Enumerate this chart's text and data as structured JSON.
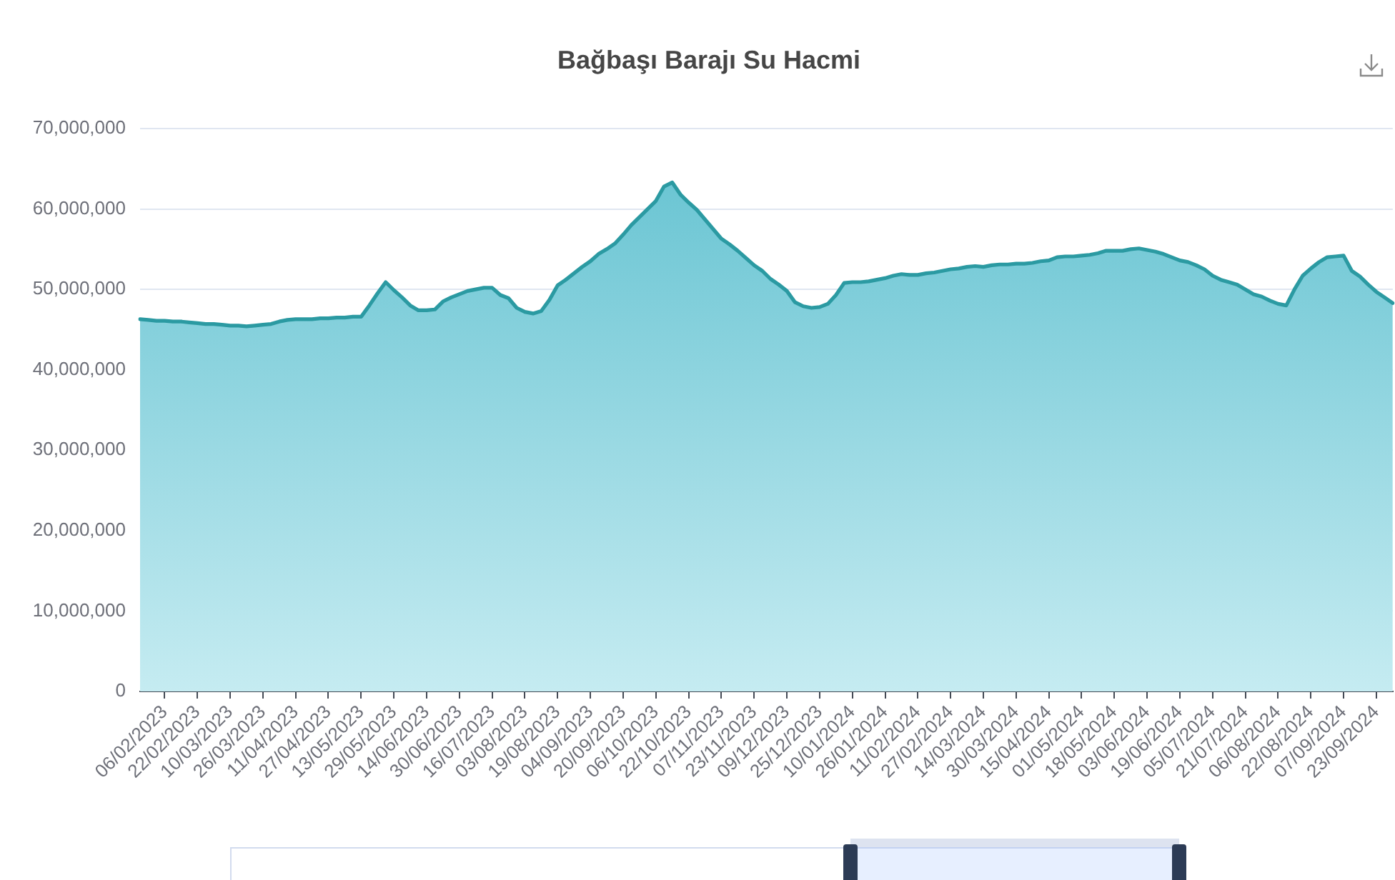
{
  "chart_data": {
    "type": "area",
    "title": "Bağbaşı Barajı Su Hacmi",
    "categories": [
      null,
      null,
      null,
      "06/02/2023",
      null,
      null,
      null,
      "22/02/2023",
      null,
      null,
      null,
      "10/03/2023",
      null,
      null,
      null,
      "26/03/2023",
      null,
      null,
      null,
      "11/04/2023",
      null,
      null,
      null,
      "27/04/2023",
      null,
      null,
      null,
      "13/05/2023",
      null,
      null,
      null,
      "29/05/2023",
      null,
      null,
      null,
      "14/06/2023",
      null,
      null,
      null,
      "30/06/2023",
      null,
      null,
      null,
      "16/07/2023",
      null,
      null,
      null,
      "03/08/2023",
      null,
      null,
      null,
      "19/08/2023",
      null,
      null,
      null,
      "04/09/2023",
      null,
      null,
      null,
      "20/09/2023",
      null,
      null,
      null,
      "06/10/2023",
      null,
      null,
      null,
      "22/10/2023",
      null,
      null,
      null,
      "07/11/2023",
      null,
      null,
      null,
      "23/11/2023",
      null,
      null,
      null,
      "09/12/2023",
      null,
      null,
      null,
      "25/12/2023",
      null,
      null,
      null,
      "10/01/2024",
      null,
      null,
      null,
      "26/01/2024",
      null,
      null,
      null,
      "11/02/2024",
      null,
      null,
      null,
      "27/02/2024",
      null,
      null,
      null,
      "14/03/2024",
      null,
      null,
      null,
      "30/03/2024",
      null,
      null,
      null,
      "15/04/2024",
      null,
      null,
      null,
      "01/05/2024",
      null,
      null,
      null,
      "18/05/2024",
      null,
      null,
      null,
      "03/06/2024",
      null,
      null,
      null,
      "19/06/2024",
      null,
      null,
      null,
      "05/07/2024",
      null,
      null,
      null,
      "21/07/2024",
      null,
      null,
      null,
      "06/08/2024",
      null,
      null,
      null,
      "22/08/2024",
      null,
      null,
      null,
      "07/09/2024",
      null,
      null,
      null,
      "23/09/2024",
      null,
      null
    ],
    "values": [
      46300000,
      46200000,
      46100000,
      46100000,
      46000000,
      46000000,
      45900000,
      45800000,
      45700000,
      45700000,
      45600000,
      45500000,
      45500000,
      45400000,
      45500000,
      45600000,
      45700000,
      46000000,
      46200000,
      46300000,
      46300000,
      46300000,
      46400000,
      46400000,
      46500000,
      46500000,
      46600000,
      46600000,
      48000000,
      49500000,
      50900000,
      49900000,
      49000000,
      48000000,
      47400000,
      47400000,
      47500000,
      48500000,
      49000000,
      49400000,
      49800000,
      50000000,
      50200000,
      50200000,
      49300000,
      48900000,
      47700000,
      47200000,
      47000000,
      47300000,
      48700000,
      50500000,
      51200000,
      52000000,
      52800000,
      53500000,
      54400000,
      55000000,
      55700000,
      56800000,
      58000000,
      59000000,
      60000000,
      61000000,
      62800000,
      63300000,
      61800000,
      60800000,
      59900000,
      58700000,
      57500000,
      56300000,
      55600000,
      54800000,
      53900000,
      53000000,
      52300000,
      51300000,
      50600000,
      49800000,
      48400000,
      47900000,
      47700000,
      47800000,
      48200000,
      49300000,
      50800000,
      50900000,
      50900000,
      51000000,
      51200000,
      51400000,
      51700000,
      51900000,
      51800000,
      51800000,
      52000000,
      52100000,
      52300000,
      52500000,
      52600000,
      52800000,
      52900000,
      52800000,
      53000000,
      53100000,
      53100000,
      53200000,
      53200000,
      53300000,
      53500000,
      53600000,
      54000000,
      54100000,
      54100000,
      54200000,
      54300000,
      54500000,
      54800000,
      54800000,
      54800000,
      55000000,
      55100000,
      54900000,
      54700000,
      54400000,
      54000000,
      53600000,
      53400000,
      53000000,
      52500000,
      51700000,
      51200000,
      50900000,
      50600000,
      50000000,
      49400000,
      49100000,
      48600000,
      48200000,
      48000000,
      50000000,
      51700000,
      52600000,
      53400000,
      54000000,
      54100000,
      54200000,
      52300000,
      51600000,
      50600000,
      49700000,
      49000000,
      48300000
    ],
    "color": "#2b9aa2",
    "ylim": [
      0,
      70000000
    ],
    "yticks": [
      {
        "value": 0,
        "label": "0"
      },
      {
        "value": 10000000,
        "label": "10,000,000"
      },
      {
        "value": 20000000,
        "label": "20,000,000"
      },
      {
        "value": 30000000,
        "label": "30,000,000"
      },
      {
        "value": 40000000,
        "label": "40,000,000"
      },
      {
        "value": 50000000,
        "label": "50,000,000"
      },
      {
        "value": 60000000,
        "label": "60,000,000"
      },
      {
        "value": 70000000,
        "label": "70,000,000"
      }
    ],
    "grid": "y",
    "marker": "none",
    "line_style": "solid"
  }
}
